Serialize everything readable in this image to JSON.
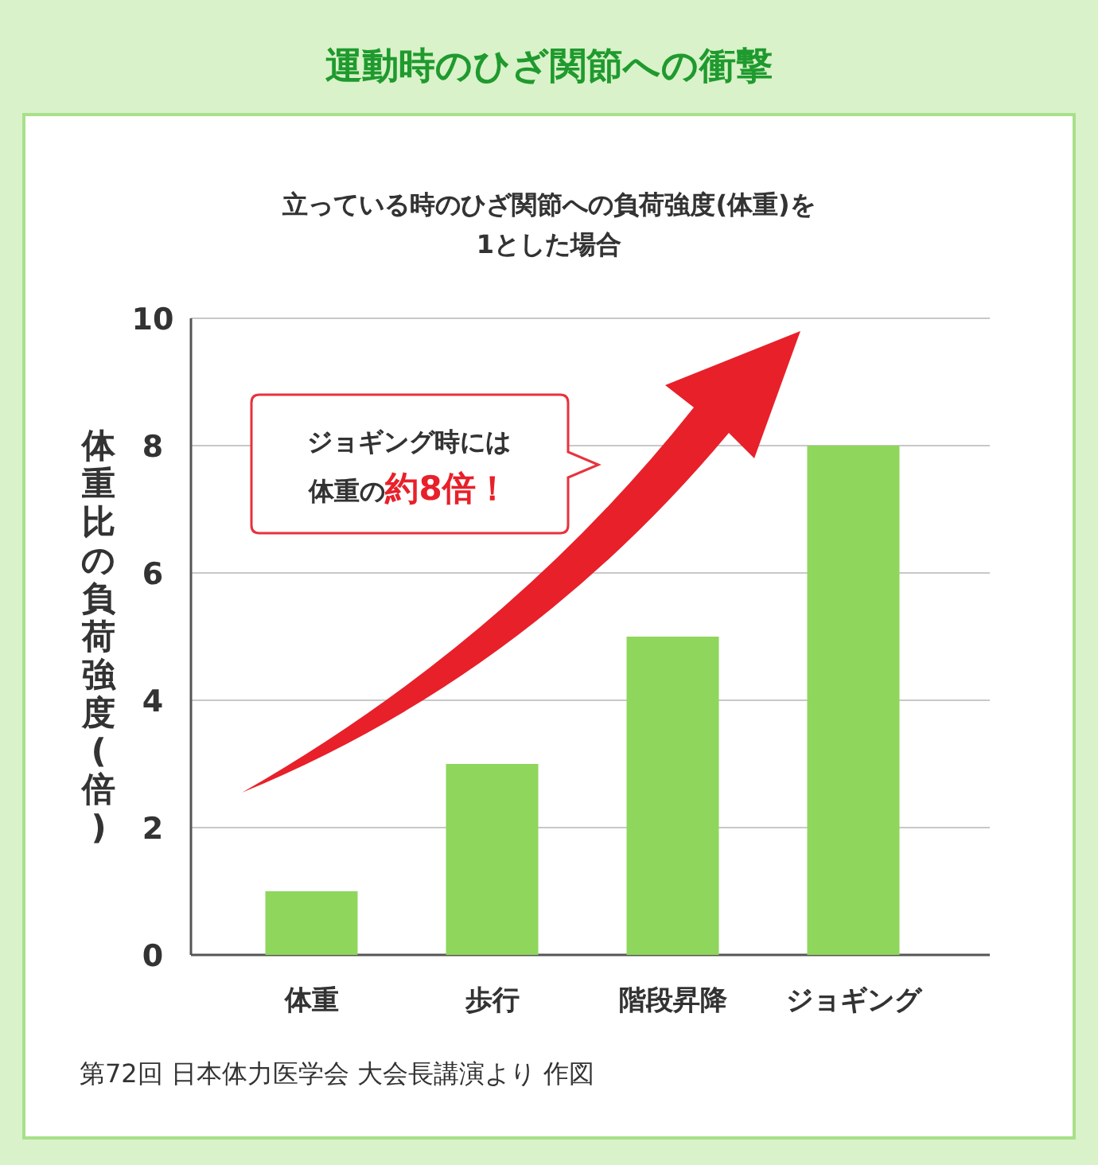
{
  "chart_data": {
    "type": "bar",
    "title": "運動時のひざ関節への衝撃",
    "subtitle": "立っている時のひざ関節への負荷強度(体重)を\n1とした場合",
    "ylabel": "体重比の負荷強度(倍)",
    "categories": [
      "体重",
      "歩行",
      "階段昇降",
      "ジョギング"
    ],
    "values": [
      1,
      3,
      5,
      8
    ],
    "color": "#8fd65c",
    "ylim": [
      0,
      10
    ],
    "yticks": [
      0,
      2,
      4,
      6,
      8,
      10
    ],
    "grid": "y",
    "annotations": [
      "ジョギング時には",
      "体重の",
      "約8倍！",
      "第72回 日本体力医学会 大会長講演より 作図"
    ]
  }
}
